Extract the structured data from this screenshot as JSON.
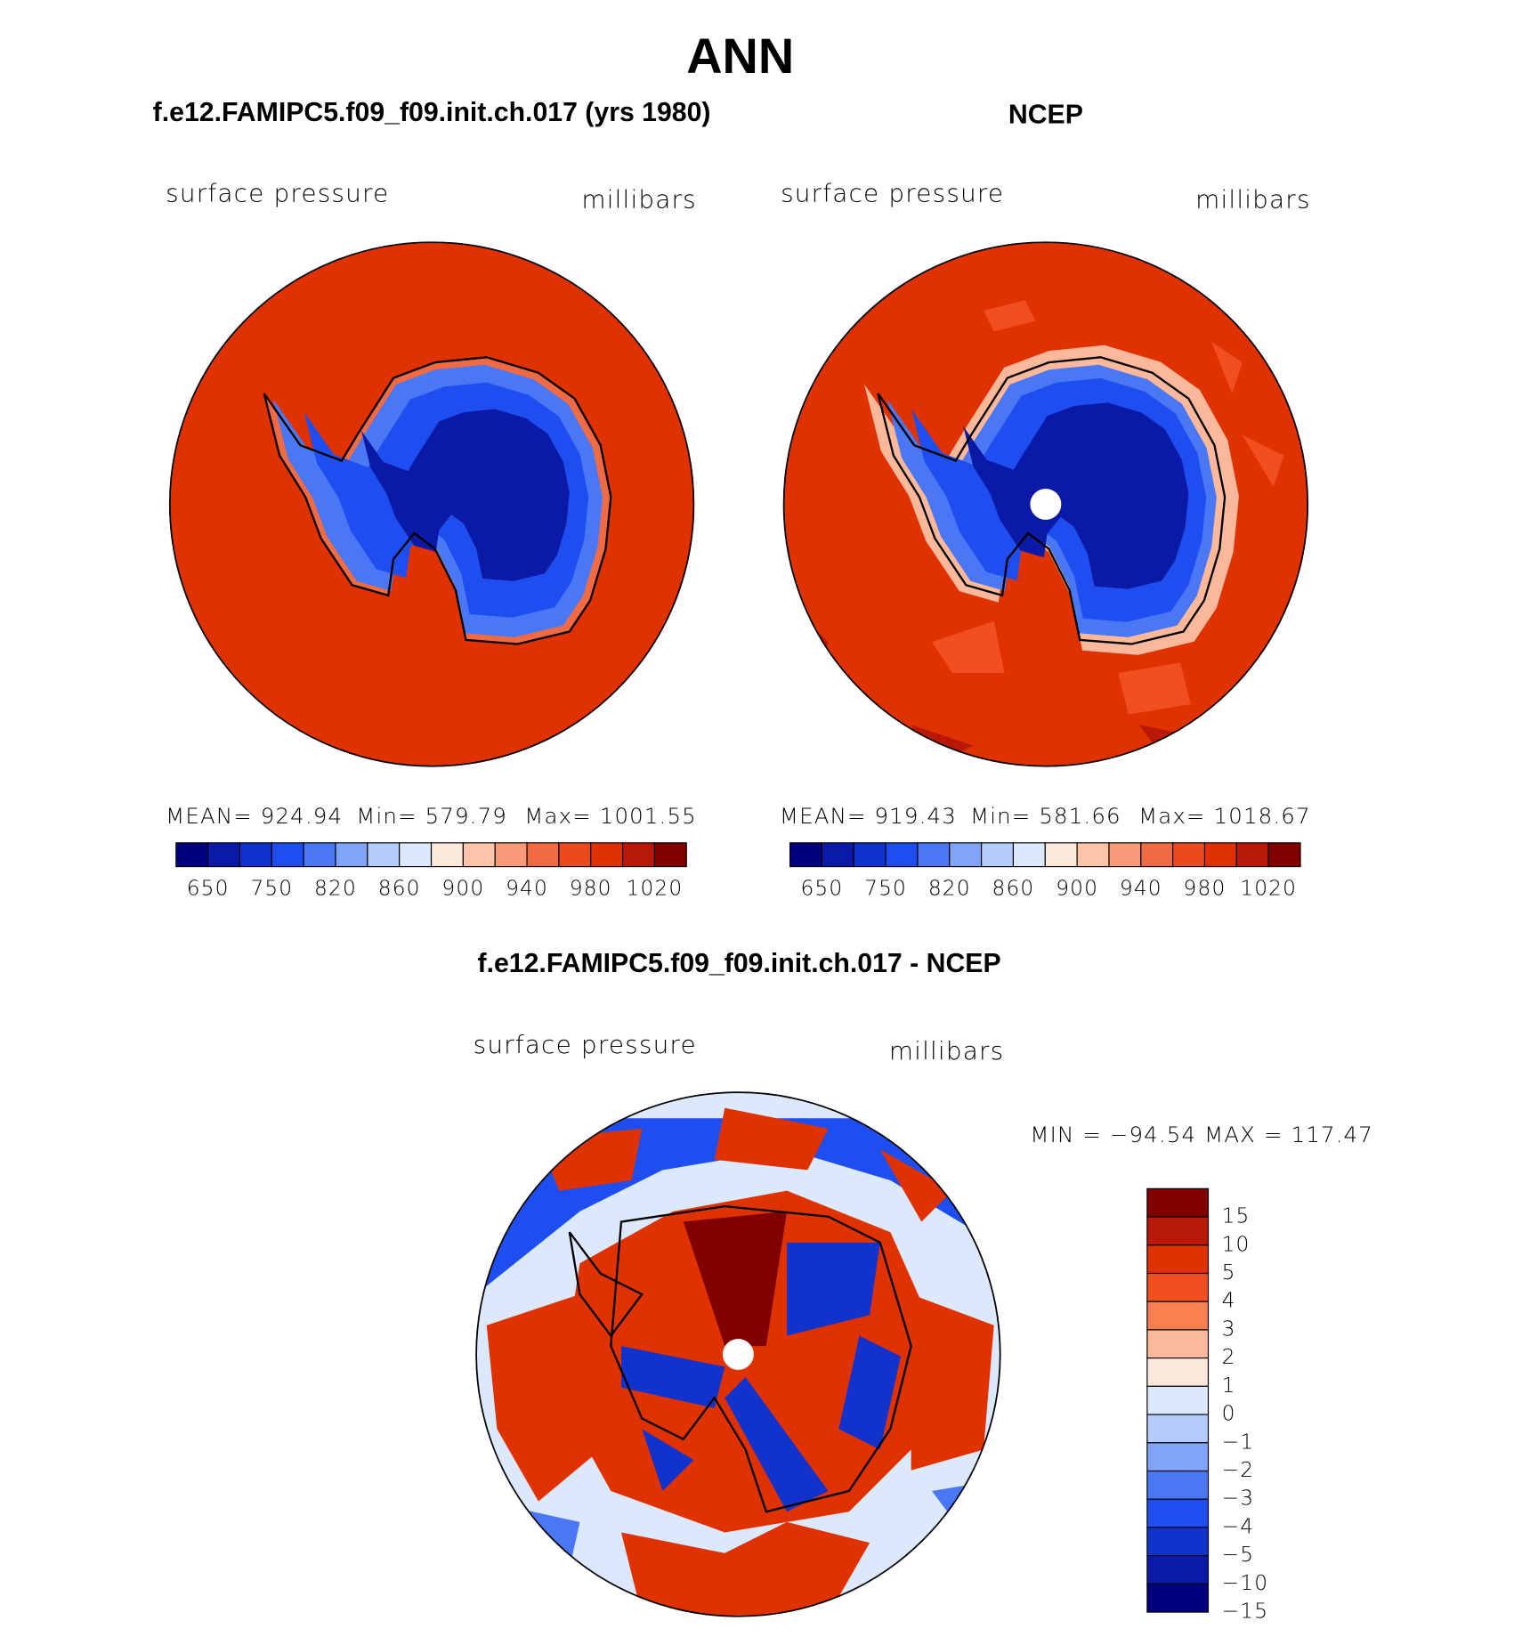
{
  "title": "ANN",
  "panels": [
    {
      "title": "f.e12.FAMIPC5.f09_f09.init.ch.017 (yrs 1980)",
      "variable": "surface pressure",
      "units": "millibars",
      "stats": [
        "MEAN= 924.94",
        "Min= 579.79",
        "Max= 1001.55"
      ]
    },
    {
      "title": "NCEP",
      "variable": "surface pressure",
      "units": "millibars",
      "stats": [
        "MEAN= 919.43",
        "Min= 581.66",
        "Max= 1018.67"
      ]
    },
    {
      "title": "f.e12.FAMIPC5.f09_f09.init.ch.017 - NCEP",
      "variable": "surface pressure",
      "units": "millibars",
      "stats": [
        "MIN = −94.54 MAX = 117.47"
      ]
    }
  ],
  "colorbar": {
    "labels": [
      "650",
      "750",
      "820",
      "860",
      "900",
      "940",
      "980",
      "1020"
    ],
    "colors": [
      "#00007f",
      "#0a1aa6",
      "#1232cc",
      "#1f4ef0",
      "#4a78f5",
      "#80a4f8",
      "#b4ccfa",
      "#dce9fc",
      "#fde8dc",
      "#fcc4a8",
      "#f89a78",
      "#f06a44",
      "#ea4a1c",
      "#e03200",
      "#b81808",
      "#800000"
    ]
  },
  "diff_colorbar": {
    "labels": [
      "15",
      "10",
      "5",
      "4",
      "3",
      "2",
      "1",
      "0",
      "−1",
      "−2",
      "−3",
      "−4",
      "−5",
      "−10",
      "−15"
    ],
    "colors": [
      "#800000",
      "#b81808",
      "#e03200",
      "#f05020",
      "#f88050",
      "#fcb89a",
      "#fde8dc",
      "#dce9fc",
      "#b4ccfa",
      "#80a4f8",
      "#4a78f5",
      "#1f4ef0",
      "#1232cc",
      "#0a1aa6",
      "#00007f"
    ]
  }
}
